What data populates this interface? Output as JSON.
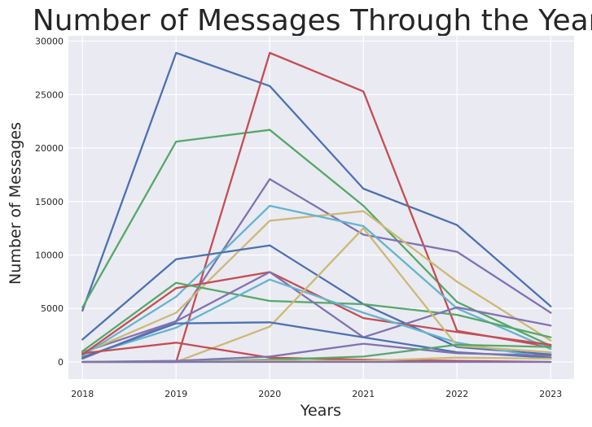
{
  "chart_data": {
    "type": "line",
    "title": "Number of Messages Through the Years",
    "xlabel": "Years",
    "ylabel": "Number of Messages",
    "x": [
      2018,
      2019,
      2020,
      2021,
      2022,
      2023
    ],
    "x_tick_labels": [
      "2018",
      "2019",
      "2020",
      "2021",
      "2022",
      "2023"
    ],
    "y_ticks": [
      0,
      5000,
      10000,
      15000,
      20000,
      25000,
      30000
    ],
    "y_tick_labels": [
      "0",
      "5000",
      "10000",
      "15000",
      "20000",
      "25000",
      "30000"
    ],
    "ylim": [
      -1600,
      30500
    ],
    "xlim": [
      2017.85,
      2023.25
    ],
    "grid": true,
    "background": "#eaeaf2",
    "series": [
      {
        "color": "#4c72b0",
        "values": [
          4800,
          28900,
          25800,
          16200,
          12800,
          5200
        ]
      },
      {
        "color": "#55a868",
        "values": [
          5100,
          20600,
          21700,
          14600,
          5600,
          1500
        ]
      },
      {
        "color": "#c44e52",
        "values": [
          0,
          0,
          28900,
          25300,
          2900,
          1400
        ]
      },
      {
        "color": "#8172b2",
        "values": [
          900,
          3800,
          17100,
          11900,
          10300,
          4600
        ]
      },
      {
        "color": "#ccb974",
        "values": [
          800,
          4600,
          13200,
          14100,
          7500,
          2000
        ]
      },
      {
        "color": "#64b5cd",
        "values": [
          600,
          6100,
          14600,
          12700,
          5000,
          1200
        ]
      },
      {
        "color": "#4c72b0",
        "values": [
          2100,
          9600,
          10900,
          5400,
          1400,
          700
        ]
      },
      {
        "color": "#c44e52",
        "values": [
          700,
          6900,
          8400,
          4100,
          2800,
          1600
        ]
      },
      {
        "color": "#55a868",
        "values": [
          1000,
          7400,
          5700,
          5400,
          4400,
          2300
        ]
      },
      {
        "color": "#8172b2",
        "values": [
          300,
          3800,
          8400,
          2300,
          5100,
          3400
        ]
      },
      {
        "color": "#64b5cd",
        "values": [
          500,
          3200,
          7700,
          4600,
          1800,
          300
        ]
      },
      {
        "color": "#ccb974",
        "values": [
          0,
          0,
          3300,
          12500,
          1500,
          900
        ]
      },
      {
        "color": "#4c72b0",
        "values": [
          400,
          3600,
          3700,
          2300,
          900,
          400
        ]
      },
      {
        "color": "#c44e52",
        "values": [
          800,
          1800,
          400,
          200,
          100,
          0
        ]
      },
      {
        "color": "#8172b2",
        "values": [
          0,
          100,
          500,
          1700,
          800,
          600
        ]
      },
      {
        "color": "#55a868",
        "values": [
          0,
          0,
          200,
          500,
          1600,
          1400
        ]
      },
      {
        "color": "#ccb974",
        "values": [
          0,
          0,
          100,
          100,
          400,
          300
        ]
      },
      {
        "color": "#8172b2",
        "values": [
          0,
          0,
          0,
          0,
          0,
          0
        ]
      }
    ]
  }
}
